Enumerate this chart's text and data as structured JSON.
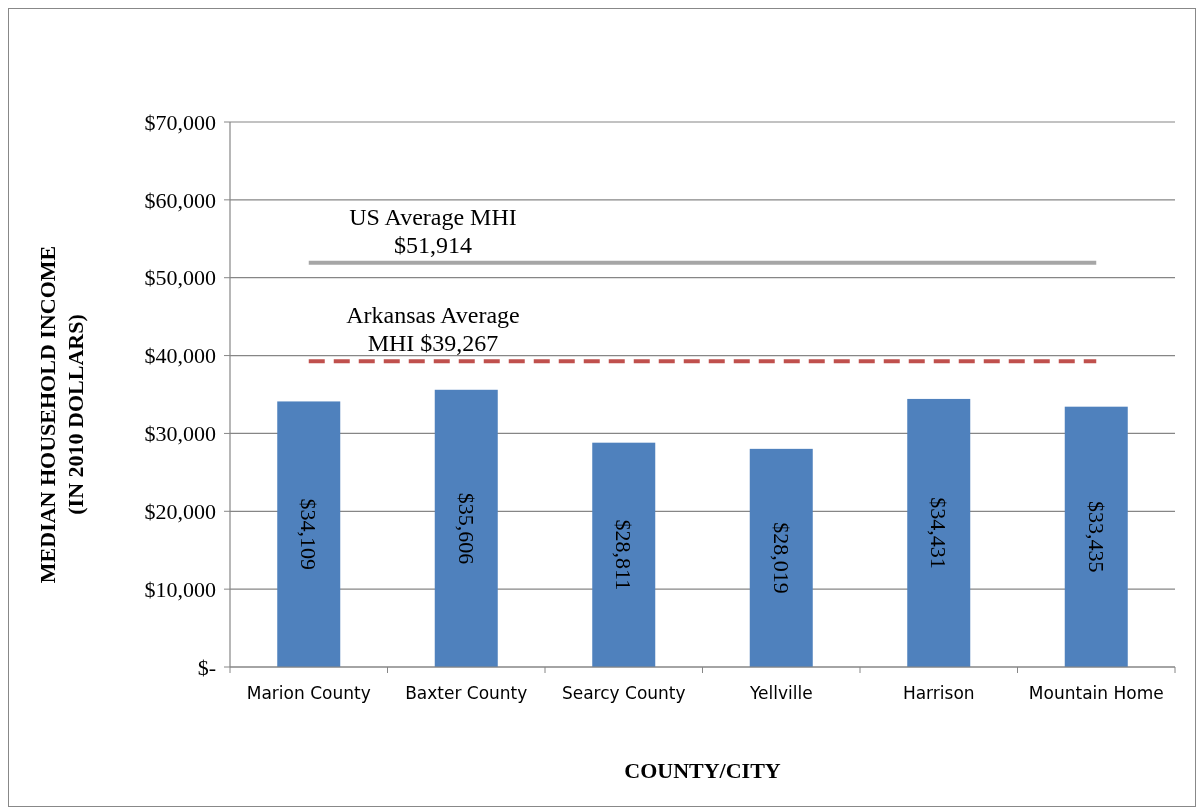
{
  "chart_data": {
    "type": "bar",
    "xlabel": "COUNTY/CITY",
    "ylabel": "MEDIAN HOUSEHOLD INCOME\n(IN 2010 DOLLARS)",
    "categories": [
      "Marion County",
      "Baxter County",
      "Searcy County",
      "Yellville",
      "Harrison",
      "Mountain Home"
    ],
    "values": [
      34109,
      35606,
      28811,
      28019,
      34431,
      33435
    ],
    "color": "#4f81bd",
    "value_labels": [
      "$34,109",
      "$35,606",
      "$28,811",
      "$28,019",
      "$34,431",
      "$33,435"
    ],
    "ylim": [
      0,
      70000
    ],
    "yticks": [
      {
        "value": 0,
        "label": "$-"
      },
      {
        "value": 10000,
        "label": "$10,000"
      },
      {
        "value": 20000,
        "label": "$20,000"
      },
      {
        "value": 30000,
        "label": "$30,000"
      },
      {
        "value": 40000,
        "label": "$40,000"
      },
      {
        "value": 50000,
        "label": "$50,000"
      },
      {
        "value": 60000,
        "label": "$60,000"
      },
      {
        "value": 70000,
        "label": "$70,000"
      }
    ],
    "grid": "y",
    "ref_lines": [
      {
        "axis": "y",
        "value": 51914,
        "label": "US Average MHI\n$51,914",
        "color": "#a6a6a6",
        "line_style": "solid"
      },
      {
        "axis": "y",
        "value": 39267,
        "label": "Arkansas Average\nMHI $39,267",
        "color": "#c0504d",
        "line_style": "dashed"
      }
    ]
  }
}
